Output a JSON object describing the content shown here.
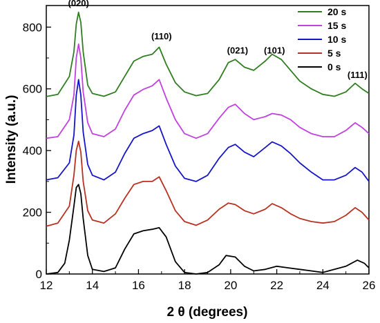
{
  "chart_data": {
    "type": "line",
    "title": "",
    "xlabel": "2 θ (degrees)",
    "ylabel": "Intensity (a.u.)",
    "xlim": [
      12,
      26
    ],
    "ylim": [
      0,
      870
    ],
    "x_ticks": [
      "12",
      "14",
      "16",
      "18",
      "20",
      "22",
      "24",
      "26"
    ],
    "y_ticks": [
      "0",
      "200",
      "400",
      "600",
      "800"
    ],
    "legend_position": "top-right",
    "grid": false,
    "series": [
      {
        "name": "20 s",
        "color": "#2e7d1f",
        "points": [
          [
            12.0,
            575
          ],
          [
            12.5,
            582
          ],
          [
            13.0,
            640
          ],
          [
            13.2,
            720
          ],
          [
            13.3,
            810
          ],
          [
            13.4,
            848
          ],
          [
            13.5,
            815
          ],
          [
            13.6,
            720
          ],
          [
            13.8,
            612
          ],
          [
            14.0,
            585
          ],
          [
            14.5,
            576
          ],
          [
            15.0,
            590
          ],
          [
            15.4,
            640
          ],
          [
            15.8,
            690
          ],
          [
            16.2,
            705
          ],
          [
            16.6,
            712
          ],
          [
            16.9,
            735
          ],
          [
            17.2,
            680
          ],
          [
            17.6,
            620
          ],
          [
            18.0,
            590
          ],
          [
            18.5,
            578
          ],
          [
            19.0,
            585
          ],
          [
            19.5,
            630
          ],
          [
            19.9,
            685
          ],
          [
            20.2,
            695
          ],
          [
            20.6,
            670
          ],
          [
            21.0,
            660
          ],
          [
            21.5,
            690
          ],
          [
            21.8,
            712
          ],
          [
            22.2,
            695
          ],
          [
            22.6,
            660
          ],
          [
            23.0,
            625
          ],
          [
            23.5,
            600
          ],
          [
            24.0,
            582
          ],
          [
            24.5,
            576
          ],
          [
            25.0,
            590
          ],
          [
            25.4,
            618
          ],
          [
            25.7,
            600
          ],
          [
            26.0,
            585
          ]
        ]
      },
      {
        "name": "15 s",
        "color": "#c040e0",
        "points": [
          [
            12.0,
            440
          ],
          [
            12.5,
            445
          ],
          [
            13.0,
            500
          ],
          [
            13.2,
            580
          ],
          [
            13.3,
            700
          ],
          [
            13.4,
            745
          ],
          [
            13.5,
            700
          ],
          [
            13.6,
            590
          ],
          [
            13.8,
            490
          ],
          [
            14.0,
            455
          ],
          [
            14.5,
            445
          ],
          [
            15.0,
            470
          ],
          [
            15.4,
            530
          ],
          [
            15.8,
            580
          ],
          [
            16.2,
            598
          ],
          [
            16.6,
            610
          ],
          [
            16.9,
            630
          ],
          [
            17.2,
            570
          ],
          [
            17.6,
            500
          ],
          [
            18.0,
            455
          ],
          [
            18.5,
            440
          ],
          [
            19.0,
            455
          ],
          [
            19.5,
            505
          ],
          [
            19.9,
            540
          ],
          [
            20.2,
            550
          ],
          [
            20.6,
            520
          ],
          [
            21.0,
            500
          ],
          [
            21.5,
            510
          ],
          [
            21.8,
            520
          ],
          [
            22.2,
            515
          ],
          [
            22.6,
            500
          ],
          [
            23.0,
            475
          ],
          [
            23.5,
            455
          ],
          [
            24.0,
            445
          ],
          [
            24.5,
            445
          ],
          [
            25.0,
            465
          ],
          [
            25.4,
            490
          ],
          [
            25.7,
            475
          ],
          [
            26.0,
            455
          ]
        ]
      },
      {
        "name": "10 s",
        "color": "#1414c8",
        "points": [
          [
            12.0,
            305
          ],
          [
            12.5,
            312
          ],
          [
            13.0,
            360
          ],
          [
            13.2,
            450
          ],
          [
            13.3,
            580
          ],
          [
            13.4,
            630
          ],
          [
            13.5,
            580
          ],
          [
            13.6,
            460
          ],
          [
            13.8,
            355
          ],
          [
            14.0,
            320
          ],
          [
            14.5,
            305
          ],
          [
            15.0,
            330
          ],
          [
            15.4,
            390
          ],
          [
            15.8,
            440
          ],
          [
            16.2,
            455
          ],
          [
            16.6,
            465
          ],
          [
            16.9,
            480
          ],
          [
            17.2,
            420
          ],
          [
            17.6,
            350
          ],
          [
            18.0,
            310
          ],
          [
            18.5,
            300
          ],
          [
            19.0,
            320
          ],
          [
            19.5,
            375
          ],
          [
            19.9,
            410
          ],
          [
            20.2,
            420
          ],
          [
            20.6,
            395
          ],
          [
            21.0,
            380
          ],
          [
            21.5,
            410
          ],
          [
            21.8,
            428
          ],
          [
            22.2,
            415
          ],
          [
            22.6,
            390
          ],
          [
            23.0,
            360
          ],
          [
            23.5,
            330
          ],
          [
            24.0,
            305
          ],
          [
            24.5,
            305
          ],
          [
            25.0,
            320
          ],
          [
            25.4,
            345
          ],
          [
            25.7,
            330
          ],
          [
            26.0,
            300
          ]
        ]
      },
      {
        "name": "5 s",
        "color": "#b83020",
        "points": [
          [
            12.0,
            155
          ],
          [
            12.5,
            165
          ],
          [
            13.0,
            220
          ],
          [
            13.2,
            320
          ],
          [
            13.3,
            400
          ],
          [
            13.4,
            430
          ],
          [
            13.5,
            395
          ],
          [
            13.6,
            300
          ],
          [
            13.8,
            205
          ],
          [
            14.0,
            175
          ],
          [
            14.5,
            165
          ],
          [
            15.0,
            195
          ],
          [
            15.4,
            245
          ],
          [
            15.8,
            290
          ],
          [
            16.2,
            300
          ],
          [
            16.6,
            300
          ],
          [
            16.9,
            315
          ],
          [
            17.2,
            270
          ],
          [
            17.6,
            205
          ],
          [
            18.0,
            170
          ],
          [
            18.5,
            158
          ],
          [
            19.0,
            175
          ],
          [
            19.5,
            210
          ],
          [
            19.9,
            230
          ],
          [
            20.2,
            225
          ],
          [
            20.6,
            205
          ],
          [
            21.0,
            195
          ],
          [
            21.5,
            210
          ],
          [
            21.8,
            228
          ],
          [
            22.2,
            215
          ],
          [
            22.6,
            195
          ],
          [
            23.0,
            180
          ],
          [
            23.5,
            170
          ],
          [
            24.0,
            165
          ],
          [
            24.5,
            170
          ],
          [
            25.0,
            190
          ],
          [
            25.4,
            215
          ],
          [
            25.7,
            200
          ],
          [
            26.0,
            175
          ]
        ]
      },
      {
        "name": "0 s",
        "color": "#000000",
        "points": [
          [
            12.0,
            0
          ],
          [
            12.5,
            5
          ],
          [
            12.8,
            35
          ],
          [
            13.0,
            110
          ],
          [
            13.2,
            220
          ],
          [
            13.3,
            280
          ],
          [
            13.4,
            290
          ],
          [
            13.5,
            260
          ],
          [
            13.6,
            180
          ],
          [
            13.8,
            60
          ],
          [
            14.0,
            15
          ],
          [
            14.5,
            8
          ],
          [
            15.0,
            20
          ],
          [
            15.4,
            80
          ],
          [
            15.8,
            130
          ],
          [
            16.2,
            140
          ],
          [
            16.6,
            145
          ],
          [
            16.9,
            150
          ],
          [
            17.2,
            120
          ],
          [
            17.6,
            40
          ],
          [
            18.0,
            5
          ],
          [
            18.5,
            0
          ],
          [
            19.0,
            5
          ],
          [
            19.5,
            30
          ],
          [
            19.8,
            60
          ],
          [
            20.2,
            55
          ],
          [
            20.6,
            25
          ],
          [
            21.0,
            10
          ],
          [
            21.5,
            15
          ],
          [
            22.0,
            25
          ],
          [
            22.5,
            20
          ],
          [
            23.0,
            15
          ],
          [
            23.5,
            10
          ],
          [
            24.0,
            5
          ],
          [
            24.5,
            15
          ],
          [
            25.0,
            25
          ],
          [
            25.5,
            45
          ],
          [
            25.8,
            35
          ],
          [
            26.0,
            20
          ]
        ]
      }
    ],
    "annotations": [
      {
        "text": "(020)",
        "x": 13.4,
        "y": 868
      },
      {
        "text": "(110)",
        "x": 17.0,
        "y": 760
      },
      {
        "text": "(021)",
        "x": 20.3,
        "y": 715
      },
      {
        "text": "(101)",
        "x": 21.9,
        "y": 715
      },
      {
        "text": "(111)",
        "x": 25.5,
        "y": 635
      }
    ]
  }
}
